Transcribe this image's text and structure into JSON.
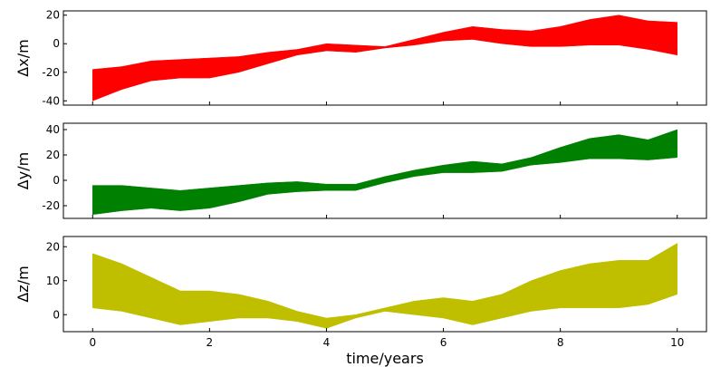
{
  "chart_data": [
    {
      "type": "area",
      "ylabel": "Δx/m",
      "xlim": [
        -0.5,
        10.5
      ],
      "ylim": [
        -43,
        23
      ],
      "yticks": [
        -40,
        -20,
        0,
        20
      ],
      "color": "#ff0000",
      "series": [
        {
          "x": [
            0,
            0.5,
            1,
            1.5,
            2,
            2.5,
            3,
            3.5,
            4,
            4.5,
            5,
            5.5,
            6,
            6.5,
            7,
            7.5,
            8,
            8.5,
            9,
            9.5,
            10
          ],
          "upper": [
            -18,
            -16,
            -12,
            -11,
            -10,
            -9,
            -6,
            -4,
            0,
            -1,
            -2,
            3,
            8,
            12,
            10,
            9,
            12,
            17,
            20,
            16,
            15
          ],
          "lower": [
            -40,
            -32,
            -26,
            -24,
            -24,
            -20,
            -14,
            -8,
            -5,
            -6,
            -3,
            -1,
            2,
            3,
            0,
            -2,
            -2,
            -1,
            -1,
            -4,
            -8
          ]
        }
      ]
    },
    {
      "type": "area",
      "ylabel": "Δy/m",
      "xlim": [
        -0.5,
        10.5
      ],
      "ylim": [
        -30,
        45
      ],
      "yticks": [
        -20,
        0,
        20,
        40
      ],
      "color": "#008000",
      "series": [
        {
          "x": [
            0,
            0.5,
            1,
            1.5,
            2,
            2.5,
            3,
            3.5,
            4,
            4.5,
            5,
            5.5,
            6,
            6.5,
            7,
            7.5,
            8,
            8.5,
            9,
            9.5,
            10
          ],
          "upper": [
            -4,
            -4,
            -6,
            -8,
            -6,
            -4,
            -2,
            -1,
            -3,
            -3,
            3,
            8,
            12,
            15,
            13,
            18,
            26,
            33,
            36,
            32,
            40
          ],
          "lower": [
            -27,
            -24,
            -22,
            -24,
            -22,
            -17,
            -11,
            -9,
            -8,
            -8,
            -2,
            3,
            6,
            6,
            7,
            12,
            14,
            17,
            17,
            16,
            18
          ]
        }
      ]
    },
    {
      "type": "area",
      "ylabel": "Δz/m",
      "xlabel": "time/years",
      "xlim": [
        -0.5,
        10.5
      ],
      "ylim": [
        -5,
        23
      ],
      "yticks": [
        0,
        10,
        20
      ],
      "xticks": [
        0,
        2,
        4,
        6,
        8,
        10
      ],
      "color": "#bfbf00",
      "series": [
        {
          "x": [
            0,
            0.5,
            1,
            1.5,
            2,
            2.5,
            3,
            3.5,
            4,
            4.5,
            5,
            5.5,
            6,
            6.5,
            7,
            7.5,
            8,
            8.5,
            9,
            9.5,
            10
          ],
          "upper": [
            18,
            15,
            11,
            7,
            7,
            6,
            4,
            1,
            -1,
            0,
            2,
            4,
            5,
            4,
            6,
            10,
            13,
            15,
            16,
            16,
            21
          ],
          "lower": [
            2,
            1,
            -1,
            -3,
            -2,
            -1,
            -1,
            -2,
            -4,
            -1,
            1,
            0,
            -1,
            -3,
            -1,
            1,
            2,
            2,
            2,
            3,
            6
          ]
        }
      ]
    }
  ]
}
